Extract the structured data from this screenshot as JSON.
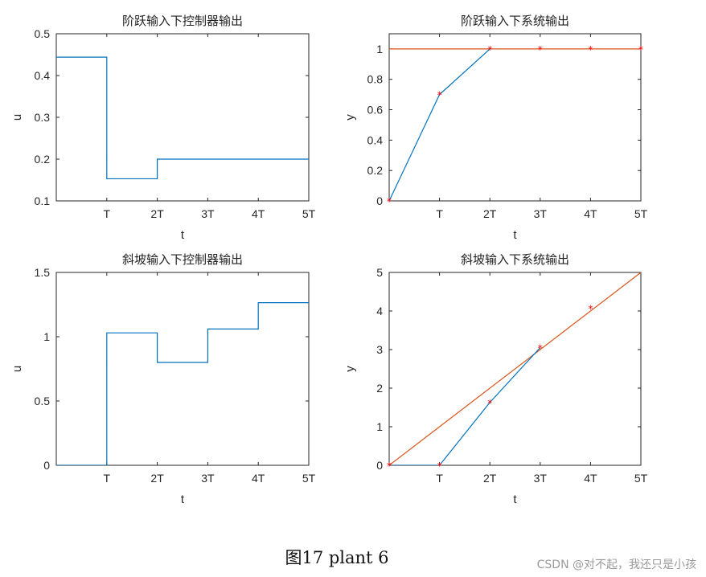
{
  "figure_caption": "图17 plant 6",
  "watermark": "CSDN @对不起，我还只是小孩",
  "colors": {
    "blue": "#0072BD",
    "orange": "#D95319",
    "marker": "#FF0000"
  },
  "chart_data": [
    {
      "type": "line",
      "title": "阶跃输入下控制器输出",
      "xlabel": "t",
      "ylabel": "u",
      "xlim": [
        0,
        5
      ],
      "ylim": [
        0.1,
        0.5
      ],
      "xticks": [
        1,
        2,
        3,
        4,
        5
      ],
      "xtick_labels": [
        "T",
        "2T",
        "3T",
        "4T",
        "5T"
      ],
      "yticks": [
        0.1,
        0.2,
        0.3,
        0.4,
        0.5
      ],
      "ytick_labels": [
        "0.1",
        "0.2",
        "0.3",
        "0.4",
        "0.5"
      ],
      "series": [
        {
          "style": "stairs",
          "color": "blue",
          "x": [
            0,
            1,
            2,
            3,
            4,
            5
          ],
          "y": [
            0.444,
            0.153,
            0.2,
            0.2,
            0.2,
            0.2
          ]
        }
      ]
    },
    {
      "type": "line",
      "title": "阶跃输入下系统输出",
      "xlabel": "t",
      "ylabel": "y",
      "xlim": [
        0,
        5
      ],
      "ylim": [
        0,
        1.1
      ],
      "xticks": [
        1,
        2,
        3,
        4,
        5
      ],
      "xtick_labels": [
        "T",
        "2T",
        "3T",
        "4T",
        "5T"
      ],
      "yticks": [
        0,
        0.2,
        0.4,
        0.6,
        0.8,
        1
      ],
      "ytick_labels": [
        "0",
        "0.2",
        "0.4",
        "0.6",
        "0.8",
        "1"
      ],
      "series": [
        {
          "style": "line",
          "color": "orange",
          "x": [
            0,
            5
          ],
          "y": [
            1,
            1
          ]
        },
        {
          "style": "line",
          "color": "blue",
          "x": [
            0,
            1,
            2
          ],
          "y": [
            0,
            0.7,
            1.0
          ]
        },
        {
          "style": "markers",
          "color": "marker",
          "x": [
            0,
            1,
            2,
            3,
            4,
            5
          ],
          "y": [
            0,
            0.7,
            1.0,
            1.0,
            1.0,
            1.0
          ]
        }
      ]
    },
    {
      "type": "line",
      "title": "斜坡输入下控制器输出",
      "xlabel": "t",
      "ylabel": "u",
      "xlim": [
        0,
        5
      ],
      "ylim": [
        0,
        1.5
      ],
      "xticks": [
        1,
        2,
        3,
        4,
        5
      ],
      "xtick_labels": [
        "T",
        "2T",
        "3T",
        "4T",
        "5T"
      ],
      "yticks": [
        0,
        0.5,
        1,
        1.5
      ],
      "ytick_labels": [
        "0",
        "0.5",
        "1",
        "1.5"
      ],
      "series": [
        {
          "style": "stairs",
          "color": "blue",
          "x": [
            0,
            1,
            2,
            3,
            4,
            5
          ],
          "y": [
            0,
            1.03,
            0.8,
            1.06,
            1.265,
            1.265
          ]
        }
      ]
    },
    {
      "type": "line",
      "title": "斜坡输入下系统输出",
      "xlabel": "t",
      "ylabel": "y",
      "xlim": [
        0,
        5
      ],
      "ylim": [
        0,
        5
      ],
      "xticks": [
        1,
        2,
        3,
        4,
        5
      ],
      "xtick_labels": [
        "T",
        "2T",
        "3T",
        "4T",
        "5T"
      ],
      "yticks": [
        0,
        1,
        2,
        3,
        4,
        5
      ],
      "ytick_labels": [
        "0",
        "1",
        "2",
        "3",
        "4",
        "5"
      ],
      "series": [
        {
          "style": "line",
          "color": "orange",
          "x": [
            0,
            5
          ],
          "y": [
            0,
            5
          ]
        },
        {
          "style": "line",
          "color": "blue",
          "x": [
            0,
            1,
            2,
            3
          ],
          "y": [
            0,
            0,
            1.63,
            3.05
          ]
        },
        {
          "style": "markers",
          "color": "marker",
          "x": [
            0,
            1,
            2,
            3,
            4
          ],
          "y": [
            0,
            0,
            1.63,
            3.05,
            4.07
          ]
        }
      ]
    }
  ]
}
